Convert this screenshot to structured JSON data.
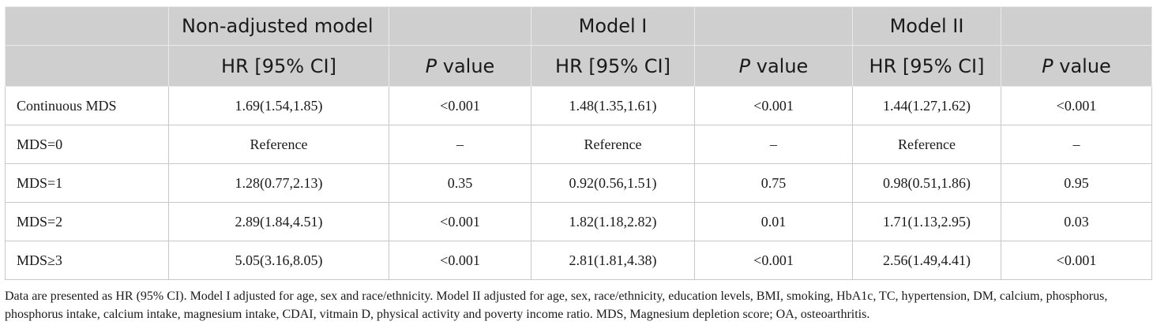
{
  "header": {
    "models": [
      "Non-adjusted model",
      "Model I",
      "Model II"
    ],
    "hr_label": "HR [95% CI]",
    "p_label_italic": "P",
    "p_label_rest": " value"
  },
  "rows": [
    {
      "label": "Continuous MDS",
      "cells": [
        "1.69(1.54,1.85)",
        "<0.001",
        "1.48(1.35,1.61)",
        "<0.001",
        "1.44(1.27,1.62)",
        "<0.001"
      ]
    },
    {
      "label": "MDS=0",
      "cells": [
        "Reference",
        "–",
        "Reference",
        "–",
        "Reference",
        "–"
      ]
    },
    {
      "label": "MDS=1",
      "cells": [
        "1.28(0.77,2.13)",
        "0.35",
        "0.92(0.56,1.51)",
        "0.75",
        "0.98(0.51,1.86)",
        "0.95"
      ]
    },
    {
      "label": "MDS=2",
      "cells": [
        "2.89(1.84,4.51)",
        "<0.001",
        "1.82(1.18,2.82)",
        "0.01",
        "1.71(1.13,2.95)",
        "0.03"
      ]
    },
    {
      "label": "MDS≥3",
      "cells": [
        "5.05(3.16,8.05)",
        "<0.001",
        "2.81(1.81,4.38)",
        "<0.001",
        "2.56(1.49,4.41)",
        "<0.001"
      ]
    }
  ],
  "footnote": "Data are presented as HR (95% CI). Model I adjusted for age, sex and race/ethnicity. Model II adjusted for age, sex, race/ethnicity, education levels, BMI, smoking, HbA1c, TC, hypertension, DM, calcium, phosphorus, phosphorus intake, calcium intake, magnesium intake, CDAI, vitmain D, physical activity and poverty income ratio. MDS, Magnesium depletion score; OA, osteoarthritis."
}
